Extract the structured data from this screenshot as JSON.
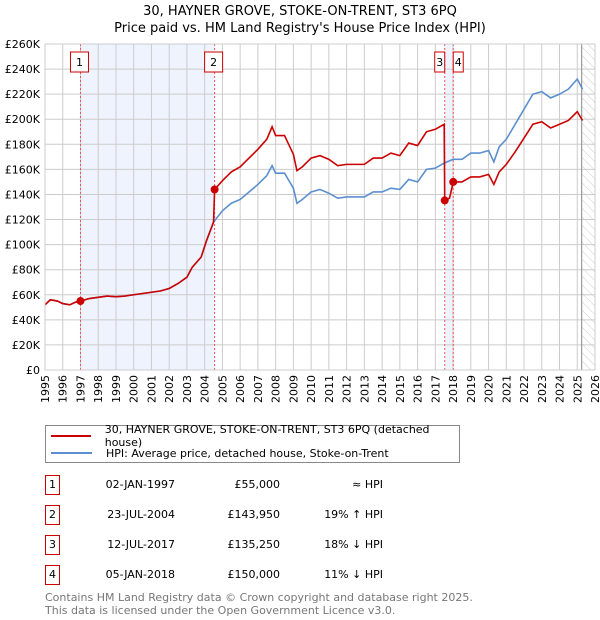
{
  "title": "30, HAYNER GROVE, STOKE-ON-TRENT, ST3 6PQ",
  "subtitle": "Price paid vs. HM Land Registry's House Price Index (HPI)",
  "chart_data": {
    "type": "line",
    "title": "30, HAYNER GROVE, STOKE-ON-TRENT, ST3 6PQ — Price paid vs. HM Land Registry's House Price Index (HPI)",
    "xlim": [
      1995,
      2026
    ],
    "ylim": [
      0,
      260000
    ],
    "x_ticks": [
      "1995",
      "1996",
      "1997",
      "1998",
      "1999",
      "2000",
      "2001",
      "2002",
      "2003",
      "2004",
      "2005",
      "2006",
      "2007",
      "2008",
      "2009",
      "2010",
      "2011",
      "2012",
      "2013",
      "2014",
      "2015",
      "2016",
      "2017",
      "2018",
      "2019",
      "2020",
      "2021",
      "2022",
      "2023",
      "2024",
      "2025",
      "2026"
    ],
    "y_ticks": [
      {
        "v": 0,
        "label": "£0"
      },
      {
        "v": 20000,
        "label": "£20K"
      },
      {
        "v": 40000,
        "label": "£40K"
      },
      {
        "v": 60000,
        "label": "£60K"
      },
      {
        "v": 80000,
        "label": "£80K"
      },
      {
        "v": 100000,
        "label": "£100K"
      },
      {
        "v": 120000,
        "label": "£120K"
      },
      {
        "v": 140000,
        "label": "£140K"
      },
      {
        "v": 160000,
        "label": "£160K"
      },
      {
        "v": 180000,
        "label": "£180K"
      },
      {
        "v": 200000,
        "label": "£200K"
      },
      {
        "v": 220000,
        "label": "£220K"
      },
      {
        "v": 240000,
        "label": "£240K"
      },
      {
        "v": 260000,
        "label": "£260K"
      }
    ],
    "grid": true,
    "series": [
      {
        "name": "30, HAYNER GROVE, STOKE-ON-TRENT, ST3 6PQ (detached house)",
        "color": "#cc0000",
        "points": [
          [
            1995,
            52000
          ],
          [
            1995.3,
            56000
          ],
          [
            1995.7,
            55000
          ],
          [
            1996,
            53000
          ],
          [
            1996.4,
            52000
          ],
          [
            1996.7,
            54000
          ],
          [
            1997,
            55000
          ],
          [
            1997.5,
            57000
          ],
          [
            1998,
            58000
          ],
          [
            1998.5,
            59000
          ],
          [
            1999,
            58500
          ],
          [
            1999.5,
            59000
          ],
          [
            2000,
            60000
          ],
          [
            2000.5,
            61000
          ],
          [
            2001,
            62000
          ],
          [
            2001.5,
            63000
          ],
          [
            2002,
            65000
          ],
          [
            2002.5,
            69000
          ],
          [
            2003,
            74000
          ],
          [
            2003.3,
            82000
          ],
          [
            2003.8,
            90000
          ],
          [
            2004.1,
            103000
          ],
          [
            2004.5,
            118000
          ],
          [
            2004.56,
            143950
          ],
          [
            2005,
            151000
          ],
          [
            2005.5,
            158000
          ],
          [
            2006,
            162000
          ],
          [
            2006.5,
            169000
          ],
          [
            2007,
            176000
          ],
          [
            2007.5,
            184000
          ],
          [
            2007.8,
            194000
          ],
          [
            2008,
            187000
          ],
          [
            2008.5,
            187000
          ],
          [
            2009,
            172000
          ],
          [
            2009.2,
            159000
          ],
          [
            2009.5,
            162000
          ],
          [
            2010,
            169000
          ],
          [
            2010.5,
            171000
          ],
          [
            2011,
            168000
          ],
          [
            2011.5,
            163000
          ],
          [
            2012,
            164000
          ],
          [
            2012.5,
            164000
          ],
          [
            2013,
            164000
          ],
          [
            2013.5,
            169000
          ],
          [
            2014,
            169000
          ],
          [
            2014.5,
            173000
          ],
          [
            2015,
            171000
          ],
          [
            2015.5,
            181000
          ],
          [
            2016,
            179000
          ],
          [
            2016.5,
            190000
          ],
          [
            2017,
            192000
          ],
          [
            2017.5,
            196000
          ],
          [
            2017.53,
            135250
          ],
          [
            2017.8,
            137000
          ],
          [
            2018.01,
            150000
          ],
          [
            2018.5,
            150000
          ],
          [
            2019,
            154000
          ],
          [
            2019.5,
            154000
          ],
          [
            2020,
            156000
          ],
          [
            2020.3,
            148000
          ],
          [
            2020.6,
            158000
          ],
          [
            2021,
            164000
          ],
          [
            2021.5,
            174000
          ],
          [
            2022,
            185000
          ],
          [
            2022.5,
            196000
          ],
          [
            2023,
            198000
          ],
          [
            2023.5,
            193000
          ],
          [
            2024,
            196000
          ],
          [
            2024.5,
            199000
          ],
          [
            2025,
            206000
          ],
          [
            2025.3,
            199000
          ]
        ]
      },
      {
        "name": "HPI: Average price, detached house, Stoke-on-Trent",
        "color": "#5b8fd0",
        "points": [
          [
            1995,
            52000
          ],
          [
            1995.3,
            56000
          ],
          [
            1995.7,
            55000
          ],
          [
            1996,
            53000
          ],
          [
            1996.4,
            52000
          ],
          [
            1996.7,
            54000
          ],
          [
            1997,
            55000
          ],
          [
            1997.5,
            57000
          ],
          [
            1998,
            58000
          ],
          [
            1998.5,
            59000
          ],
          [
            1999,
            58500
          ],
          [
            1999.5,
            59000
          ],
          [
            2000,
            60000
          ],
          [
            2000.5,
            61000
          ],
          [
            2001,
            62000
          ],
          [
            2001.5,
            63000
          ],
          [
            2002,
            65000
          ],
          [
            2002.5,
            69000
          ],
          [
            2003,
            74000
          ],
          [
            2003.3,
            82000
          ],
          [
            2003.8,
            90000
          ],
          [
            2004.1,
            103000
          ],
          [
            2004.5,
            118000
          ],
          [
            2005,
            127000
          ],
          [
            2005.5,
            133000
          ],
          [
            2006,
            136000
          ],
          [
            2006.5,
            142000
          ],
          [
            2007,
            148000
          ],
          [
            2007.5,
            155000
          ],
          [
            2007.8,
            163000
          ],
          [
            2008,
            157000
          ],
          [
            2008.5,
            157000
          ],
          [
            2009,
            145000
          ],
          [
            2009.2,
            133000
          ],
          [
            2009.5,
            136000
          ],
          [
            2010,
            142000
          ],
          [
            2010.5,
            144000
          ],
          [
            2011,
            141000
          ],
          [
            2011.5,
            137000
          ],
          [
            2012,
            138000
          ],
          [
            2012.5,
            138000
          ],
          [
            2013,
            138000
          ],
          [
            2013.5,
            142000
          ],
          [
            2014,
            142000
          ],
          [
            2014.5,
            145000
          ],
          [
            2015,
            144000
          ],
          [
            2015.5,
            152000
          ],
          [
            2016,
            150000
          ],
          [
            2016.5,
            160000
          ],
          [
            2017,
            161000
          ],
          [
            2017.5,
            165000
          ],
          [
            2018,
            168000
          ],
          [
            2018.5,
            168000
          ],
          [
            2019,
            173000
          ],
          [
            2019.5,
            173000
          ],
          [
            2020,
            175000
          ],
          [
            2020.3,
            166000
          ],
          [
            2020.6,
            178000
          ],
          [
            2021,
            184000
          ],
          [
            2021.5,
            196000
          ],
          [
            2022,
            208000
          ],
          [
            2022.5,
            220000
          ],
          [
            2023,
            222000
          ],
          [
            2023.5,
            217000
          ],
          [
            2024,
            220000
          ],
          [
            2024.5,
            224000
          ],
          [
            2025,
            232000
          ],
          [
            2025.3,
            224000
          ]
        ]
      }
    ],
    "sales": [
      {
        "label": "1",
        "x": 1997.0,
        "price": 55000
      },
      {
        "label": "2",
        "x": 2004.56,
        "price": 143950
      },
      {
        "label": "3",
        "x": 2017.53,
        "price": 135250
      },
      {
        "label": "4",
        "x": 2018.01,
        "price": 150000
      }
    ],
    "shaded_ranges": [
      [
        1997.0,
        2004.56
      ],
      [
        2017.53,
        2018.01
      ]
    ],
    "forecast_hatch_from": 2025.25,
    "legend_placement": "below"
  },
  "legend": {
    "items": [
      "30, HAYNER GROVE, STOKE-ON-TRENT, ST3 6PQ (detached house)",
      "HPI: Average price, detached house, Stoke-on-Trent"
    ]
  },
  "table": [
    {
      "num": "1",
      "date": "02-JAN-1997",
      "price": "£55,000",
      "hpi": "≈ HPI"
    },
    {
      "num": "2",
      "date": "23-JUL-2004",
      "price": "£143,950",
      "hpi": "19% ↑ HPI"
    },
    {
      "num": "3",
      "date": "12-JUL-2017",
      "price": "£135,250",
      "hpi": "18% ↓ HPI"
    },
    {
      "num": "4",
      "date": "05-JAN-2018",
      "price": "£150,000",
      "hpi": "11% ↓ HPI"
    }
  ],
  "footer": {
    "line1": "Contains HM Land Registry data © Crown copyright and database right 2025.",
    "line2": "This data is licensed under the Open Government Licence v3.0."
  }
}
